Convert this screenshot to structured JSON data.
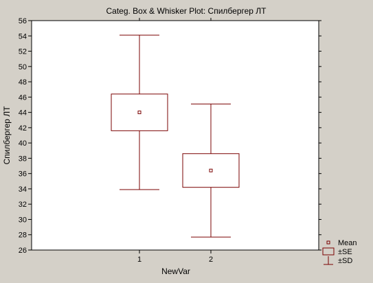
{
  "chart_data": {
    "type": "box",
    "title": "Categ. Box & Whisker Plot: Спилбергер ЛТ",
    "xlabel": "NewVar",
    "ylabel": "Спилбергер ЛТ",
    "ylim": [
      26,
      56
    ],
    "yticks": [
      26,
      28,
      30,
      32,
      34,
      36,
      38,
      40,
      42,
      44,
      46,
      48,
      50,
      52,
      54,
      56
    ],
    "categories": [
      "1",
      "2"
    ],
    "boxes": [
      {
        "category": "1",
        "mean": 44.0,
        "se_low": 41.6,
        "se_high": 46.4,
        "sd_low": 33.9,
        "sd_high": 54.1
      },
      {
        "category": "2",
        "mean": 36.4,
        "se_low": 34.2,
        "se_high": 38.6,
        "sd_low": 27.7,
        "sd_high": 45.1
      }
    ],
    "legend": {
      "position": "bottom-right",
      "items": [
        {
          "kind": "mean",
          "label": "Mean"
        },
        {
          "kind": "se",
          "label": "±SE"
        },
        {
          "kind": "sd",
          "label": "±SD"
        }
      ]
    },
    "grid": false,
    "colors": {
      "box": "#7a0000",
      "background": "#d4d0c8",
      "plot_area": "#ffffff"
    }
  }
}
